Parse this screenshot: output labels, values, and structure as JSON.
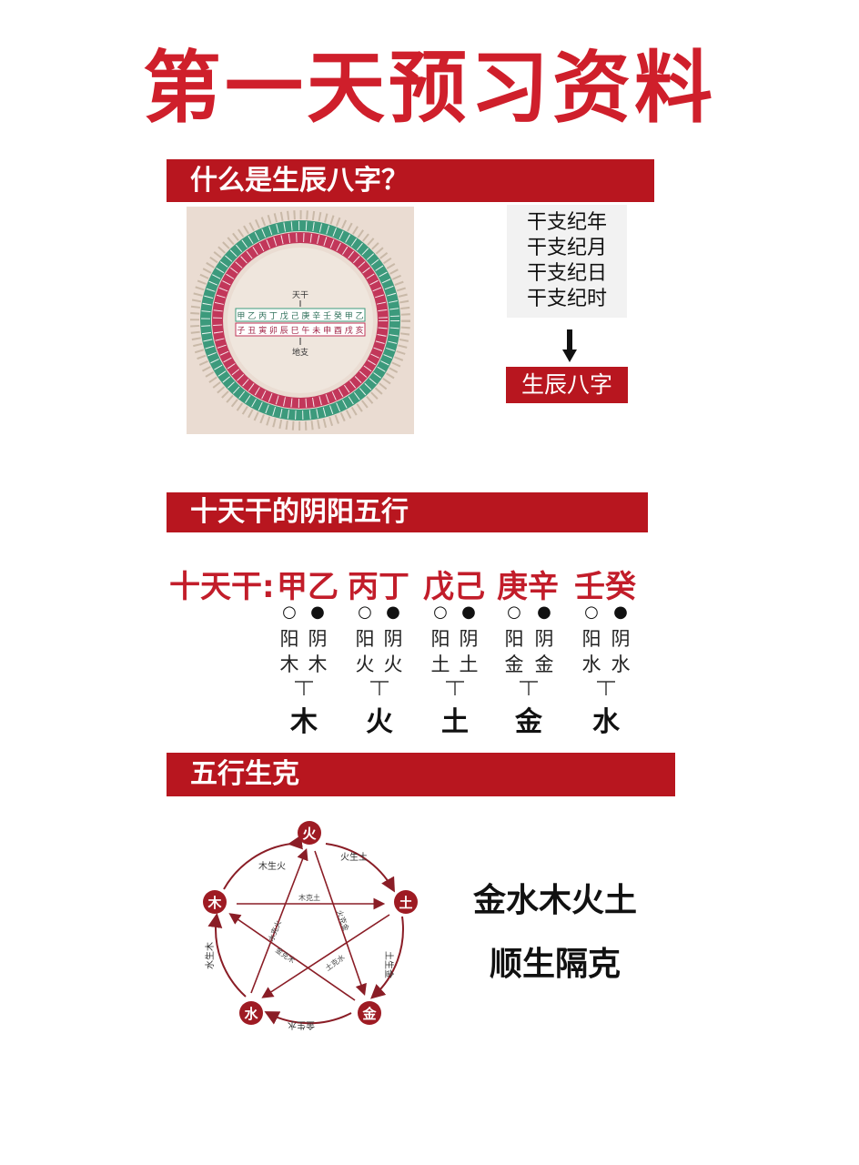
{
  "title": "第一天预习资料",
  "section1": {
    "heading": "什么是生辰八字？",
    "wheel": {
      "inner_top": "天干",
      "inner_bottom": "地支",
      "stems_row": [
        "甲",
        "乙",
        "丙",
        "丁",
        "戊",
        "己",
        "庚",
        "辛",
        "壬",
        "癸",
        "甲",
        "乙"
      ],
      "branches_row": [
        "子",
        "丑",
        "寅",
        "卯",
        "辰",
        "巳",
        "午",
        "未",
        "申",
        "酉",
        "戌",
        "亥"
      ]
    },
    "ganzhi_lines": [
      "干支纪年",
      "干支纪月",
      "干支纪日",
      "干支纪时"
    ],
    "result": "生辰八字"
  },
  "section2": {
    "heading": "十天干的阴阳五行",
    "stems_label": "十天干:",
    "groups": [
      {
        "pair": "甲乙",
        "yang": "阳木",
        "yin": "阴木",
        "element": "木"
      },
      {
        "pair": "丙丁",
        "yang": "阳火",
        "yin": "阴火",
        "element": "火"
      },
      {
        "pair": "戊己",
        "yang": "阳土",
        "yin": "阴土",
        "element": "土"
      },
      {
        "pair": "庚辛",
        "yang": "阳金",
        "yin": "阴金",
        "element": "金"
      },
      {
        "pair": "壬癸",
        "yang": "阳水",
        "yin": "阴水",
        "element": "水"
      }
    ],
    "yang_mark": "○",
    "yin_mark": "●"
  },
  "section3": {
    "heading": "五行生克",
    "nodes": {
      "fire": "火",
      "earth": "土",
      "metal": "金",
      "water": "水",
      "wood": "木"
    },
    "sheng_labels": [
      "木生火",
      "火生土",
      "土生金",
      "金生水",
      "水生木"
    ],
    "ke_labels": [
      "木克土",
      "土克水",
      "水克火",
      "火克金",
      "金克木"
    ],
    "rules": [
      "金水木火土",
      "顺生隔克"
    ]
  },
  "colors": {
    "brand_red": "#b8161f",
    "title_red": "#cf1f2b",
    "wheel_green": "#3c9a7c",
    "wheel_pink": "#c2375a"
  }
}
